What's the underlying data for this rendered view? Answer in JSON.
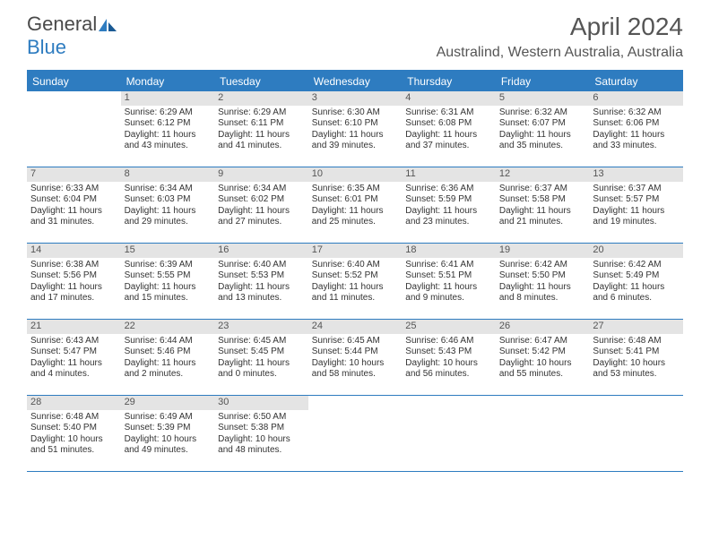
{
  "logo": {
    "part1": "General",
    "part2": "Blue"
  },
  "colors": {
    "accent": "#2e7cc0",
    "header_bg": "#e4e4e4",
    "text": "#333333",
    "title": "#555555"
  },
  "title": "April 2024",
  "location": "Australind, Western Australia, Australia",
  "day_names": [
    "Sunday",
    "Monday",
    "Tuesday",
    "Wednesday",
    "Thursday",
    "Friday",
    "Saturday"
  ],
  "weeks": [
    [
      {
        "day": "",
        "sunrise": "",
        "sunset": "",
        "daylight": "",
        "empty": true
      },
      {
        "day": "1",
        "sunrise": "Sunrise: 6:29 AM",
        "sunset": "Sunset: 6:12 PM",
        "daylight": "Daylight: 11 hours and 43 minutes."
      },
      {
        "day": "2",
        "sunrise": "Sunrise: 6:29 AM",
        "sunset": "Sunset: 6:11 PM",
        "daylight": "Daylight: 11 hours and 41 minutes."
      },
      {
        "day": "3",
        "sunrise": "Sunrise: 6:30 AM",
        "sunset": "Sunset: 6:10 PM",
        "daylight": "Daylight: 11 hours and 39 minutes."
      },
      {
        "day": "4",
        "sunrise": "Sunrise: 6:31 AM",
        "sunset": "Sunset: 6:08 PM",
        "daylight": "Daylight: 11 hours and 37 minutes."
      },
      {
        "day": "5",
        "sunrise": "Sunrise: 6:32 AM",
        "sunset": "Sunset: 6:07 PM",
        "daylight": "Daylight: 11 hours and 35 minutes."
      },
      {
        "day": "6",
        "sunrise": "Sunrise: 6:32 AM",
        "sunset": "Sunset: 6:06 PM",
        "daylight": "Daylight: 11 hours and 33 minutes."
      }
    ],
    [
      {
        "day": "7",
        "sunrise": "Sunrise: 6:33 AM",
        "sunset": "Sunset: 6:04 PM",
        "daylight": "Daylight: 11 hours and 31 minutes."
      },
      {
        "day": "8",
        "sunrise": "Sunrise: 6:34 AM",
        "sunset": "Sunset: 6:03 PM",
        "daylight": "Daylight: 11 hours and 29 minutes."
      },
      {
        "day": "9",
        "sunrise": "Sunrise: 6:34 AM",
        "sunset": "Sunset: 6:02 PM",
        "daylight": "Daylight: 11 hours and 27 minutes."
      },
      {
        "day": "10",
        "sunrise": "Sunrise: 6:35 AM",
        "sunset": "Sunset: 6:01 PM",
        "daylight": "Daylight: 11 hours and 25 minutes."
      },
      {
        "day": "11",
        "sunrise": "Sunrise: 6:36 AM",
        "sunset": "Sunset: 5:59 PM",
        "daylight": "Daylight: 11 hours and 23 minutes."
      },
      {
        "day": "12",
        "sunrise": "Sunrise: 6:37 AM",
        "sunset": "Sunset: 5:58 PM",
        "daylight": "Daylight: 11 hours and 21 minutes."
      },
      {
        "day": "13",
        "sunrise": "Sunrise: 6:37 AM",
        "sunset": "Sunset: 5:57 PM",
        "daylight": "Daylight: 11 hours and 19 minutes."
      }
    ],
    [
      {
        "day": "14",
        "sunrise": "Sunrise: 6:38 AM",
        "sunset": "Sunset: 5:56 PM",
        "daylight": "Daylight: 11 hours and 17 minutes."
      },
      {
        "day": "15",
        "sunrise": "Sunrise: 6:39 AM",
        "sunset": "Sunset: 5:55 PM",
        "daylight": "Daylight: 11 hours and 15 minutes."
      },
      {
        "day": "16",
        "sunrise": "Sunrise: 6:40 AM",
        "sunset": "Sunset: 5:53 PM",
        "daylight": "Daylight: 11 hours and 13 minutes."
      },
      {
        "day": "17",
        "sunrise": "Sunrise: 6:40 AM",
        "sunset": "Sunset: 5:52 PM",
        "daylight": "Daylight: 11 hours and 11 minutes."
      },
      {
        "day": "18",
        "sunrise": "Sunrise: 6:41 AM",
        "sunset": "Sunset: 5:51 PM",
        "daylight": "Daylight: 11 hours and 9 minutes."
      },
      {
        "day": "19",
        "sunrise": "Sunrise: 6:42 AM",
        "sunset": "Sunset: 5:50 PM",
        "daylight": "Daylight: 11 hours and 8 minutes."
      },
      {
        "day": "20",
        "sunrise": "Sunrise: 6:42 AM",
        "sunset": "Sunset: 5:49 PM",
        "daylight": "Daylight: 11 hours and 6 minutes."
      }
    ],
    [
      {
        "day": "21",
        "sunrise": "Sunrise: 6:43 AM",
        "sunset": "Sunset: 5:47 PM",
        "daylight": "Daylight: 11 hours and 4 minutes."
      },
      {
        "day": "22",
        "sunrise": "Sunrise: 6:44 AM",
        "sunset": "Sunset: 5:46 PM",
        "daylight": "Daylight: 11 hours and 2 minutes."
      },
      {
        "day": "23",
        "sunrise": "Sunrise: 6:45 AM",
        "sunset": "Sunset: 5:45 PM",
        "daylight": "Daylight: 11 hours and 0 minutes."
      },
      {
        "day": "24",
        "sunrise": "Sunrise: 6:45 AM",
        "sunset": "Sunset: 5:44 PM",
        "daylight": "Daylight: 10 hours and 58 minutes."
      },
      {
        "day": "25",
        "sunrise": "Sunrise: 6:46 AM",
        "sunset": "Sunset: 5:43 PM",
        "daylight": "Daylight: 10 hours and 56 minutes."
      },
      {
        "day": "26",
        "sunrise": "Sunrise: 6:47 AM",
        "sunset": "Sunset: 5:42 PM",
        "daylight": "Daylight: 10 hours and 55 minutes."
      },
      {
        "day": "27",
        "sunrise": "Sunrise: 6:48 AM",
        "sunset": "Sunset: 5:41 PM",
        "daylight": "Daylight: 10 hours and 53 minutes."
      }
    ],
    [
      {
        "day": "28",
        "sunrise": "Sunrise: 6:48 AM",
        "sunset": "Sunset: 5:40 PM",
        "daylight": "Daylight: 10 hours and 51 minutes."
      },
      {
        "day": "29",
        "sunrise": "Sunrise: 6:49 AM",
        "sunset": "Sunset: 5:39 PM",
        "daylight": "Daylight: 10 hours and 49 minutes."
      },
      {
        "day": "30",
        "sunrise": "Sunrise: 6:50 AM",
        "sunset": "Sunset: 5:38 PM",
        "daylight": "Daylight: 10 hours and 48 minutes."
      },
      {
        "day": "",
        "sunrise": "",
        "sunset": "",
        "daylight": "",
        "empty": true
      },
      {
        "day": "",
        "sunrise": "",
        "sunset": "",
        "daylight": "",
        "empty": true
      },
      {
        "day": "",
        "sunrise": "",
        "sunset": "",
        "daylight": "",
        "empty": true
      },
      {
        "day": "",
        "sunrise": "",
        "sunset": "",
        "daylight": "",
        "empty": true
      }
    ]
  ]
}
